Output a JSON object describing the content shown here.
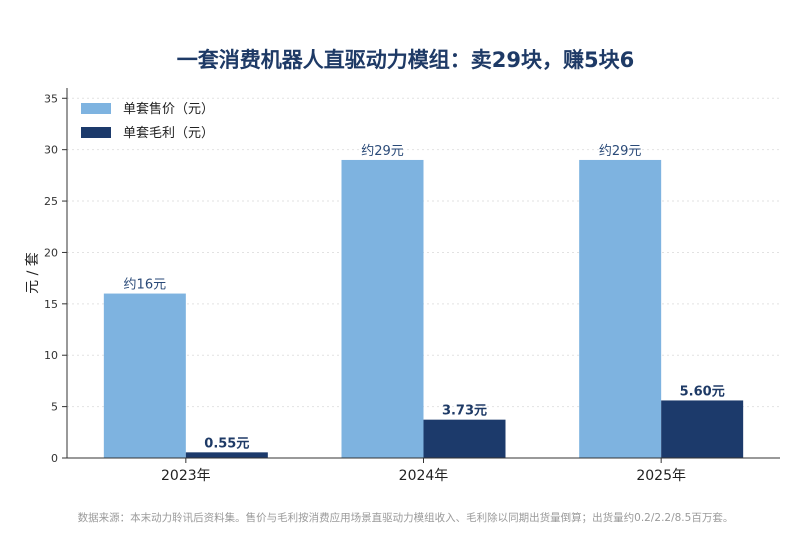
{
  "title": "一套消费机器人直驱动力模组：卖29块，赚5块6",
  "footnote": "数据来源：本末动力聆讯后资料集。售价与毛利按消费应用场景直驱动力模组收入、毛利除以同期出货量倒算；出货量约0.2/2.2/8.5百万套。",
  "colors": {
    "price": "#7eb3e0",
    "profit": "#1c3a6b",
    "label_price": "#2a4a78",
    "label_profit": "#1e3a66"
  },
  "chart_data": {
    "type": "bar",
    "categories": [
      "2023年",
      "2024年",
      "2025年"
    ],
    "series": [
      {
        "name": "单套售价（元）",
        "values": [
          16,
          29,
          29
        ],
        "labels": [
          "约16元",
          "约29元",
          "约29元"
        ]
      },
      {
        "name": "单套毛利（元）",
        "values": [
          0.55,
          3.73,
          5.6
        ],
        "labels": [
          "0.55元",
          "3.73元",
          "5.60元"
        ]
      }
    ],
    "ylabel": "元 / 套",
    "xlabel": "",
    "ylim": [
      0,
      36
    ],
    "yticks": [
      0,
      5,
      10,
      15,
      20,
      25,
      30,
      35
    ],
    "grid": "horizontal-dotted",
    "legend": "top-left"
  }
}
